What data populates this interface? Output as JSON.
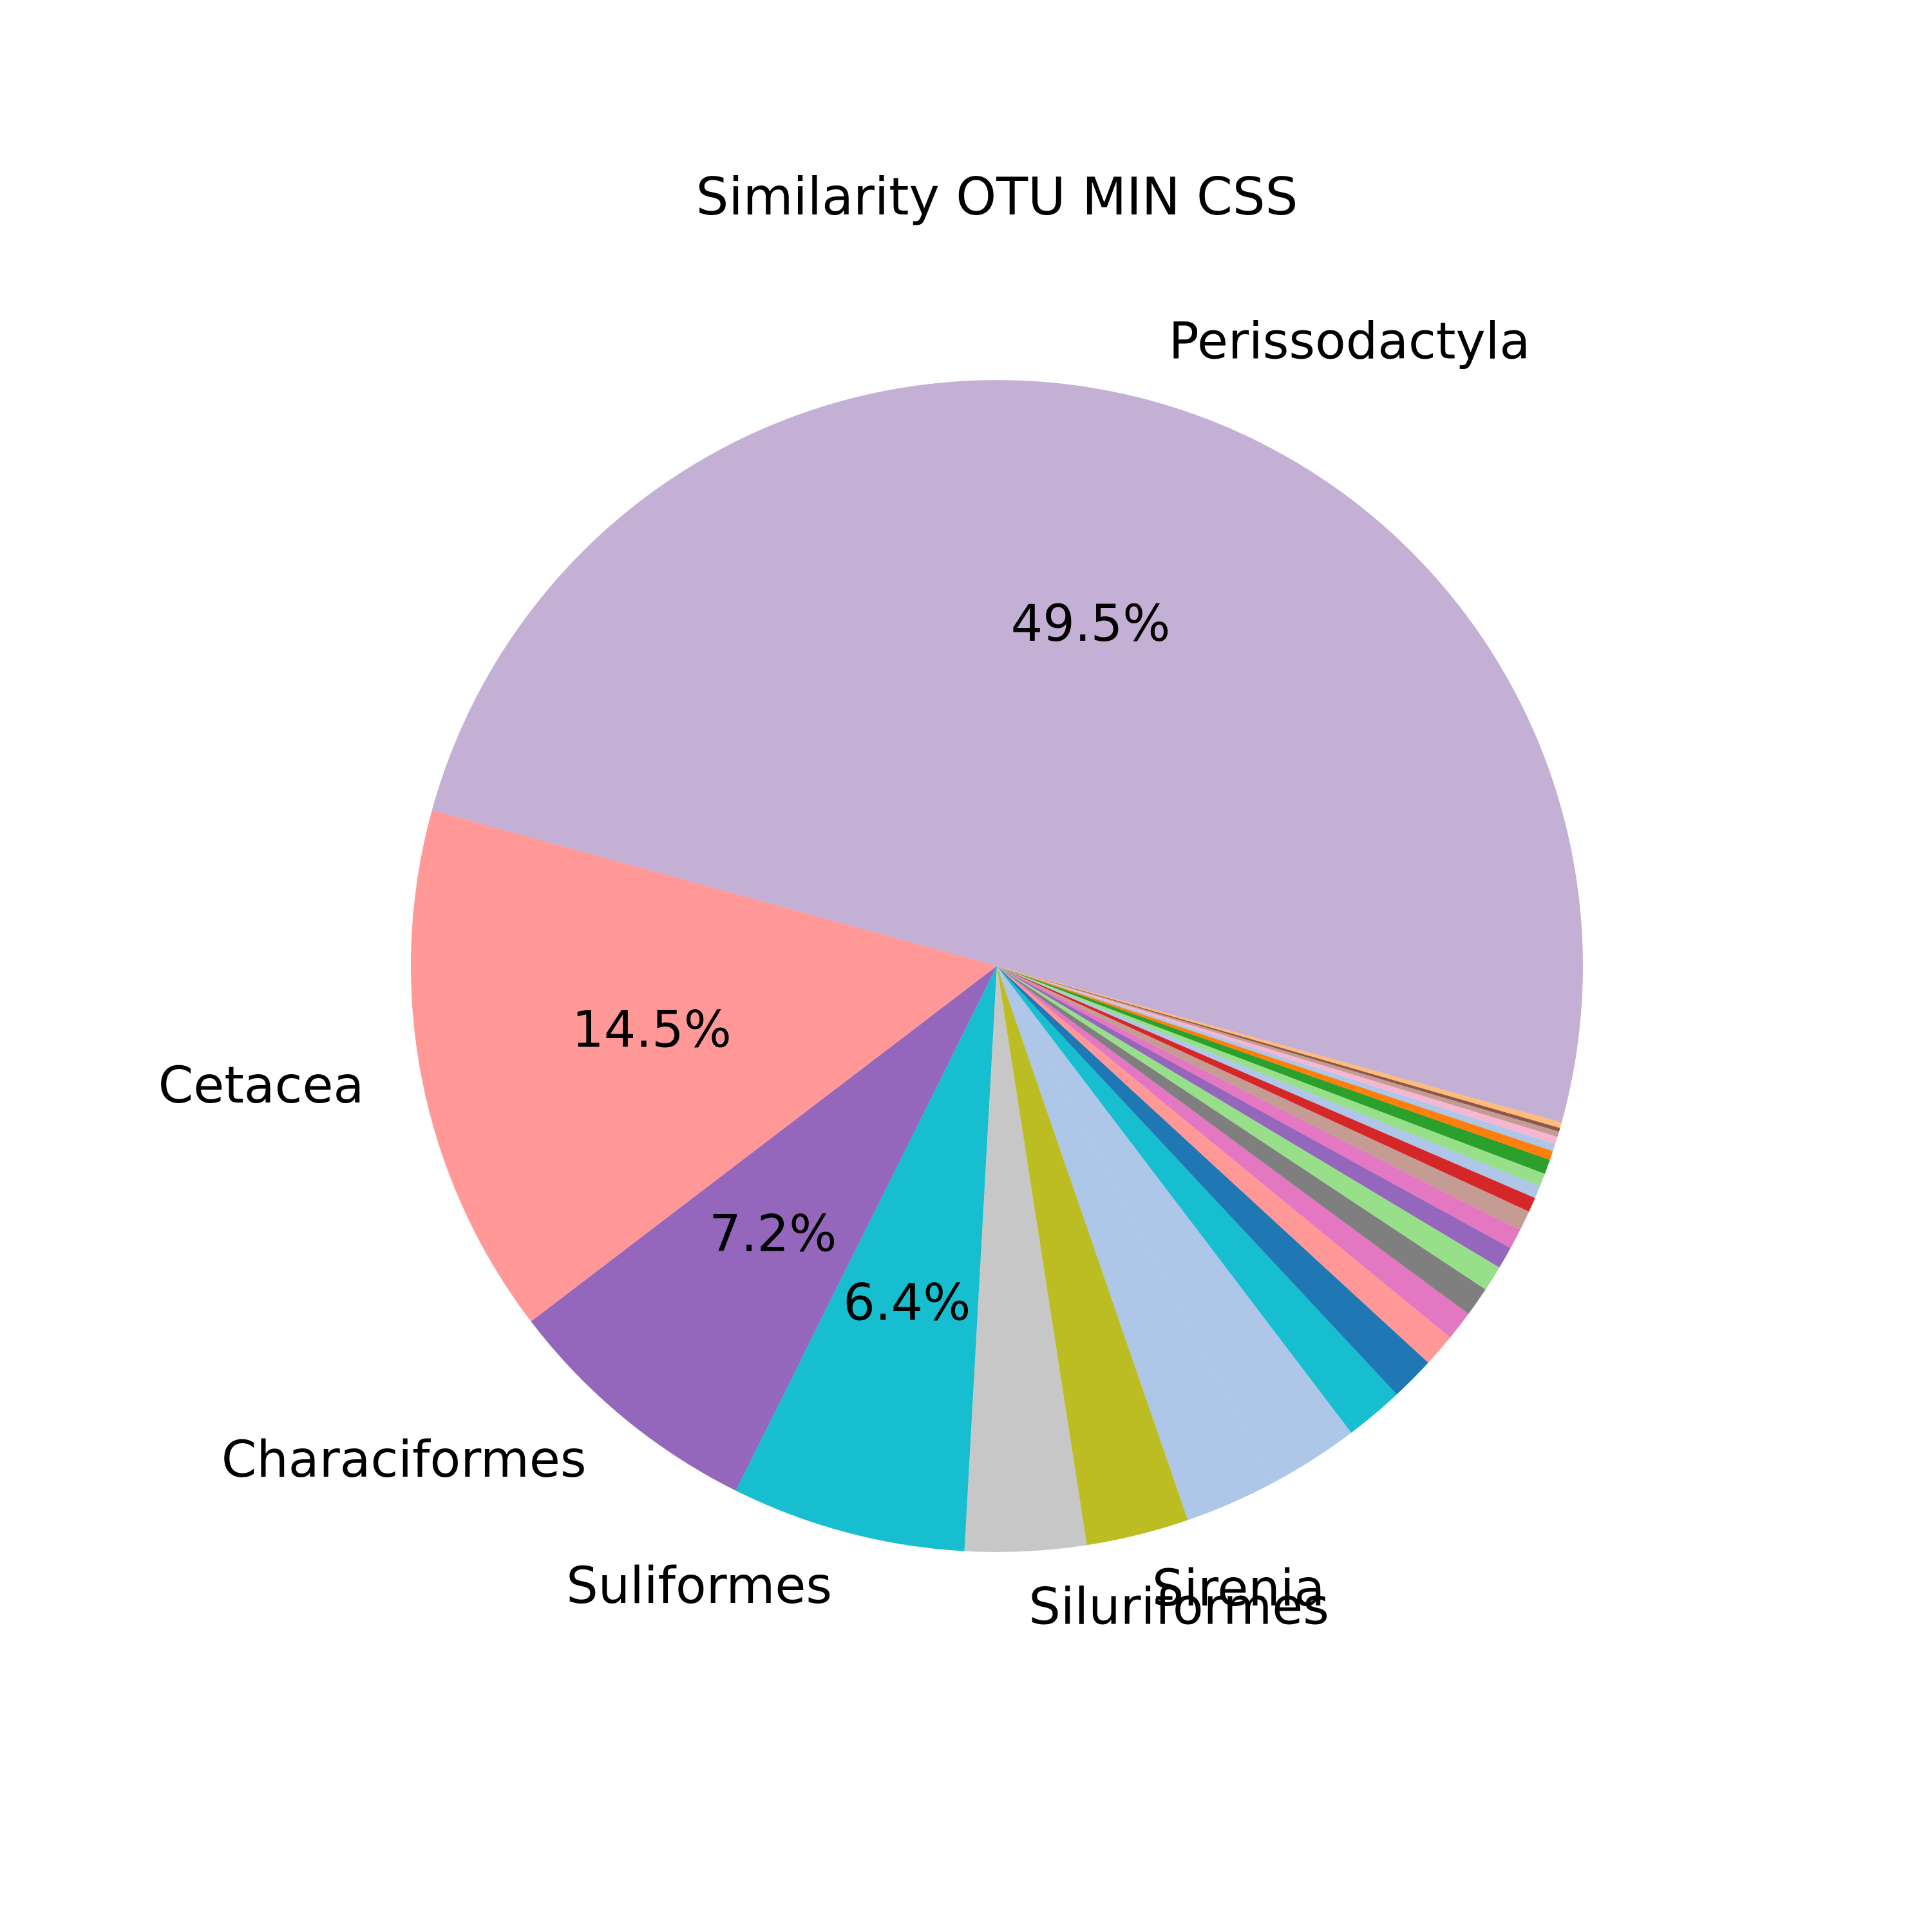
{
  "chart_data": {
    "type": "pie",
    "title": "Similarity OTU MIN CSS",
    "start_angle_deg": -15.5,
    "direction": "counterclockwise",
    "slices": [
      {
        "label": "Perissodactyla",
        "value": 49.5,
        "pct_label": "49.5%",
        "color": "#c5b0d5"
      },
      {
        "label": "Cetacea",
        "value": 14.5,
        "pct_label": "14.5%",
        "color": "#ff9896"
      },
      {
        "label": "Characiformes",
        "value": 7.2,
        "pct_label": "7.2%",
        "color": "#9467bd"
      },
      {
        "label": "Suliformes",
        "value": 6.4,
        "pct_label": "6.4%",
        "color": "#17becf"
      },
      {
        "label": "Siluriformes",
        "value": 3.3,
        "pct_label": "",
        "color": "#c7c7c7"
      },
      {
        "label": "Sirenia",
        "value": 2.8,
        "pct_label": "",
        "color": "#bcbd22"
      },
      {
        "label": "",
        "value": 2.5,
        "pct_label": "",
        "color": "#aec7e8"
      },
      {
        "label": "",
        "value": 2.5,
        "pct_label": "",
        "color": "#aec7e8"
      },
      {
        "label": "",
        "value": 1.6,
        "pct_label": "",
        "color": "#17becf"
      },
      {
        "label": "",
        "value": 1.2,
        "pct_label": "",
        "color": "#1f77b4"
      },
      {
        "label": "",
        "value": 0.9,
        "pct_label": "",
        "color": "#ff9896"
      },
      {
        "label": "",
        "value": 0.8,
        "pct_label": "",
        "color": "#e377c2"
      },
      {
        "label": "",
        "value": 0.8,
        "pct_label": "",
        "color": "#7f7f7f"
      },
      {
        "label": "",
        "value": 0.7,
        "pct_label": "",
        "color": "#98df8a"
      },
      {
        "label": "",
        "value": 0.6,
        "pct_label": "",
        "color": "#9467bd"
      },
      {
        "label": "",
        "value": 0.55,
        "pct_label": "",
        "color": "#e377c2"
      },
      {
        "label": "",
        "value": 0.55,
        "pct_label": "",
        "color": "#c49c94"
      },
      {
        "label": "",
        "value": 0.4,
        "pct_label": "",
        "color": "#d62728"
      },
      {
        "label": "",
        "value": 0.35,
        "pct_label": "",
        "color": "#aec7e8"
      },
      {
        "label": "",
        "value": 0.35,
        "pct_label": "",
        "color": "#98df8a"
      },
      {
        "label": "",
        "value": 0.4,
        "pct_label": "",
        "color": "#2ca02c"
      },
      {
        "label": "",
        "value": 0.25,
        "pct_label": "",
        "color": "#ff7f0e"
      },
      {
        "label": "",
        "value": 0.2,
        "pct_label": "",
        "color": "#aec7e8"
      },
      {
        "label": "",
        "value": 0.2,
        "pct_label": "",
        "color": "#f7b6d2"
      },
      {
        "label": "",
        "value": 0.15,
        "pct_label": "",
        "color": "#c49c94"
      },
      {
        "label": "",
        "value": 0.1,
        "pct_label": "",
        "color": "#8c564b"
      },
      {
        "label": "",
        "value": 0.15,
        "pct_label": "",
        "color": "#ffbb78"
      }
    ]
  }
}
